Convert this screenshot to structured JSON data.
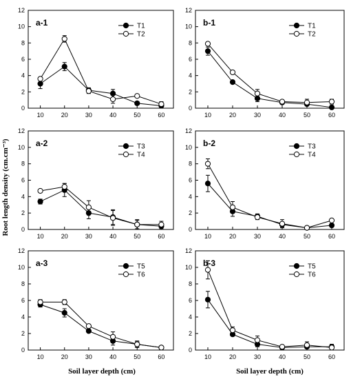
{
  "figure": {
    "ylabel": "Root length density (cm.cm⁻³)",
    "xlabels": [
      "Soil layer depth (cm)",
      "Soil layer depth (cm)"
    ]
  },
  "chart_data": [
    {
      "type": "line",
      "label": "a-1",
      "x": [
        10,
        20,
        30,
        40,
        50,
        60
      ],
      "xticks": [
        10,
        20,
        30,
        40,
        50,
        60
      ],
      "ylim": [
        0,
        12
      ],
      "yticks": [
        0,
        2,
        4,
        6,
        8,
        10,
        12
      ],
      "legend": "top-right",
      "series": [
        {
          "name": "T1",
          "marker": "filled",
          "values": [
            3.0,
            5.1,
            2.2,
            1.8,
            0.6,
            0.3
          ],
          "errors": [
            0.6,
            0.5,
            0.3,
            0.5,
            0.2,
            0.2
          ]
        },
        {
          "name": "T2",
          "marker": "open",
          "values": [
            3.6,
            8.5,
            2.1,
            1.1,
            1.5,
            0.5
          ],
          "errors": [
            0.2,
            0.4,
            0.3,
            0.5,
            0.2,
            0.3
          ]
        }
      ]
    },
    {
      "type": "line",
      "label": "b-1",
      "x": [
        10,
        20,
        30,
        40,
        50,
        60
      ],
      "xticks": [
        10,
        20,
        30,
        40,
        50,
        60
      ],
      "ylim": [
        0,
        12
      ],
      "yticks": [
        0,
        2,
        4,
        6,
        8,
        10,
        12
      ],
      "legend": "top-right",
      "series": [
        {
          "name": "T1",
          "marker": "filled",
          "values": [
            7.0,
            3.2,
            1.2,
            0.7,
            0.5,
            0.1
          ],
          "errors": [
            0.5,
            0.2,
            0.4,
            0.2,
            0.2,
            0.1
          ]
        },
        {
          "name": "T2",
          "marker": "open",
          "values": [
            7.9,
            4.4,
            1.8,
            0.8,
            0.7,
            0.8
          ],
          "errors": [
            0.2,
            0.2,
            0.5,
            0.2,
            0.4,
            0.3
          ]
        }
      ]
    },
    {
      "type": "line",
      "label": "a-2",
      "x": [
        10,
        20,
        30,
        40,
        50,
        60
      ],
      "xticks": [
        10,
        20,
        30,
        40,
        50,
        60
      ],
      "ylim": [
        0,
        12
      ],
      "yticks": [
        0,
        2,
        4,
        6,
        8,
        10,
        12
      ],
      "legend": "top-right",
      "series": [
        {
          "name": "T3",
          "marker": "filled",
          "values": [
            3.4,
            4.8,
            2.0,
            1.5,
            0.6,
            0.4
          ],
          "errors": [
            0.3,
            0.8,
            0.7,
            0.9,
            0.6,
            0.3
          ]
        },
        {
          "name": "T4",
          "marker": "open",
          "values": [
            4.7,
            5.2,
            2.7,
            1.4,
            0.6,
            0.6
          ],
          "errors": [
            0.1,
            0.4,
            0.8,
            0.9,
            0.5,
            0.4
          ]
        }
      ]
    },
    {
      "type": "line",
      "label": "b-2",
      "x": [
        10,
        20,
        30,
        40,
        50,
        60
      ],
      "xticks": [
        10,
        20,
        30,
        40,
        50,
        60
      ],
      "ylim": [
        0,
        12
      ],
      "yticks": [
        0,
        2,
        4,
        6,
        8,
        10,
        12
      ],
      "legend": "top-right",
      "series": [
        {
          "name": "T3",
          "marker": "filled",
          "values": [
            5.6,
            2.2,
            1.6,
            0.6,
            0.2,
            0.5
          ],
          "errors": [
            1.0,
            0.6,
            0.3,
            0.3,
            0.1,
            0.5
          ]
        },
        {
          "name": "T4",
          "marker": "open",
          "values": [
            8.0,
            2.7,
            1.5,
            0.7,
            0.2,
            1.1
          ],
          "errors": [
            0.6,
            0.7,
            0.3,
            0.5,
            0.1,
            0.2
          ]
        }
      ]
    },
    {
      "type": "line",
      "label": "a-3",
      "x": [
        10,
        20,
        30,
        40,
        50,
        60
      ],
      "xticks": [
        10,
        20,
        30,
        40,
        50,
        60
      ],
      "ylim": [
        0,
        12
      ],
      "yticks": [
        0,
        2,
        4,
        6,
        8,
        10,
        12
      ],
      "legend": "top-right",
      "series": [
        {
          "name": "T5",
          "marker": "filled",
          "values": [
            5.5,
            4.5,
            2.3,
            1.1,
            0.7,
            0.3
          ],
          "errors": [
            0.3,
            0.5,
            0.1,
            0.5,
            0.3,
            0.1
          ]
        },
        {
          "name": "T6",
          "marker": "open",
          "values": [
            5.8,
            5.8,
            2.9,
            1.6,
            0.7,
            0.3
          ],
          "errors": [
            0.3,
            0.3,
            0.2,
            0.6,
            0.4,
            0.2
          ]
        }
      ]
    },
    {
      "type": "line",
      "label": "b-3",
      "x": [
        10,
        20,
        30,
        40,
        50,
        60
      ],
      "xticks": [
        10,
        20,
        30,
        40,
        50,
        60
      ],
      "ylim": [
        0,
        12
      ],
      "yticks": [
        0,
        2,
        4,
        6,
        8,
        10,
        12
      ],
      "legend": "top-right",
      "series": [
        {
          "name": "T5",
          "marker": "filled",
          "values": [
            6.1,
            1.9,
            0.7,
            0.3,
            0.4,
            0.4
          ],
          "errors": [
            1.0,
            0.2,
            0.3,
            0.1,
            0.2,
            0.3
          ]
        },
        {
          "name": "T6",
          "marker": "open",
          "values": [
            9.7,
            2.4,
            1.2,
            0.4,
            0.6,
            0.3
          ],
          "errors": [
            1.1,
            0.4,
            0.5,
            0.1,
            0.4,
            0.3
          ]
        }
      ]
    }
  ]
}
